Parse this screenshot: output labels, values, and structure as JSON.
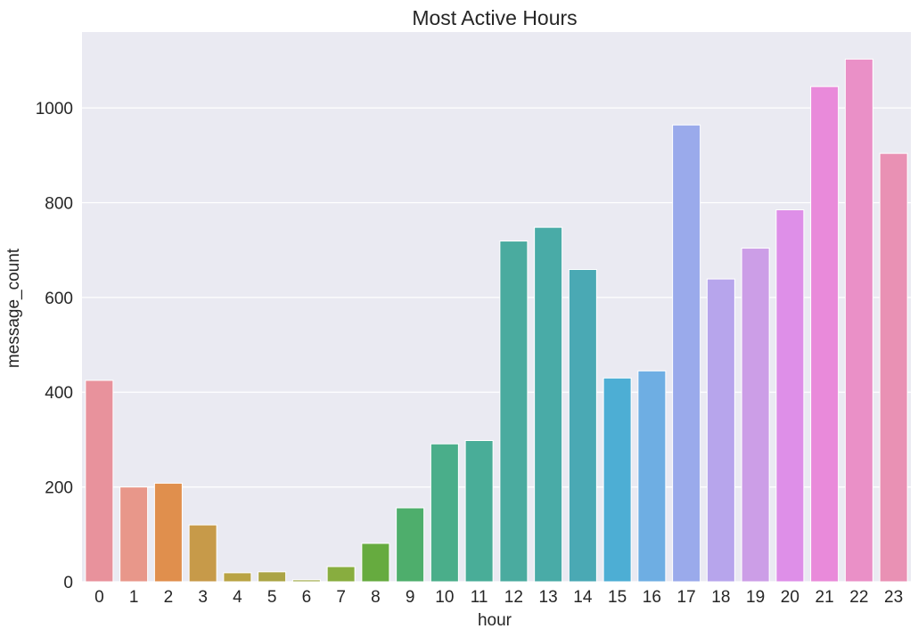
{
  "chart_data": {
    "type": "bar",
    "title": "Most Active Hours",
    "xlabel": "hour",
    "ylabel": "message_count",
    "categories": [
      "0",
      "1",
      "2",
      "3",
      "4",
      "5",
      "6",
      "7",
      "8",
      "9",
      "10",
      "11",
      "12",
      "13",
      "14",
      "15",
      "16",
      "17",
      "18",
      "19",
      "20",
      "21",
      "22",
      "23"
    ],
    "values": [
      425,
      200,
      208,
      120,
      19,
      21,
      4,
      32,
      81,
      156,
      291,
      298,
      719,
      748,
      659,
      430,
      445,
      964,
      639,
      704,
      785,
      1045,
      1103,
      904
    ],
    "colors": [
      "#e8929c",
      "#e8978a",
      "#e08f4d",
      "#c79a49",
      "#b9a344",
      "#aba445",
      "#9ea844",
      "#88ad3f",
      "#66ab3f",
      "#4eae6c",
      "#4aae8a",
      "#49ad98",
      "#4aab9f",
      "#49aba7",
      "#4aa9b4",
      "#4daed4",
      "#6eaee3",
      "#9aaaeb",
      "#b7a5ec",
      "#cc9ee7",
      "#de8fe8",
      "#e98ada",
      "#ea90c7",
      "#e991b4"
    ],
    "ylim": [
      0,
      1160
    ],
    "yticks": [
      0,
      200,
      400,
      600,
      800,
      1000
    ],
    "grid": true,
    "background": "#eaeaf2"
  }
}
